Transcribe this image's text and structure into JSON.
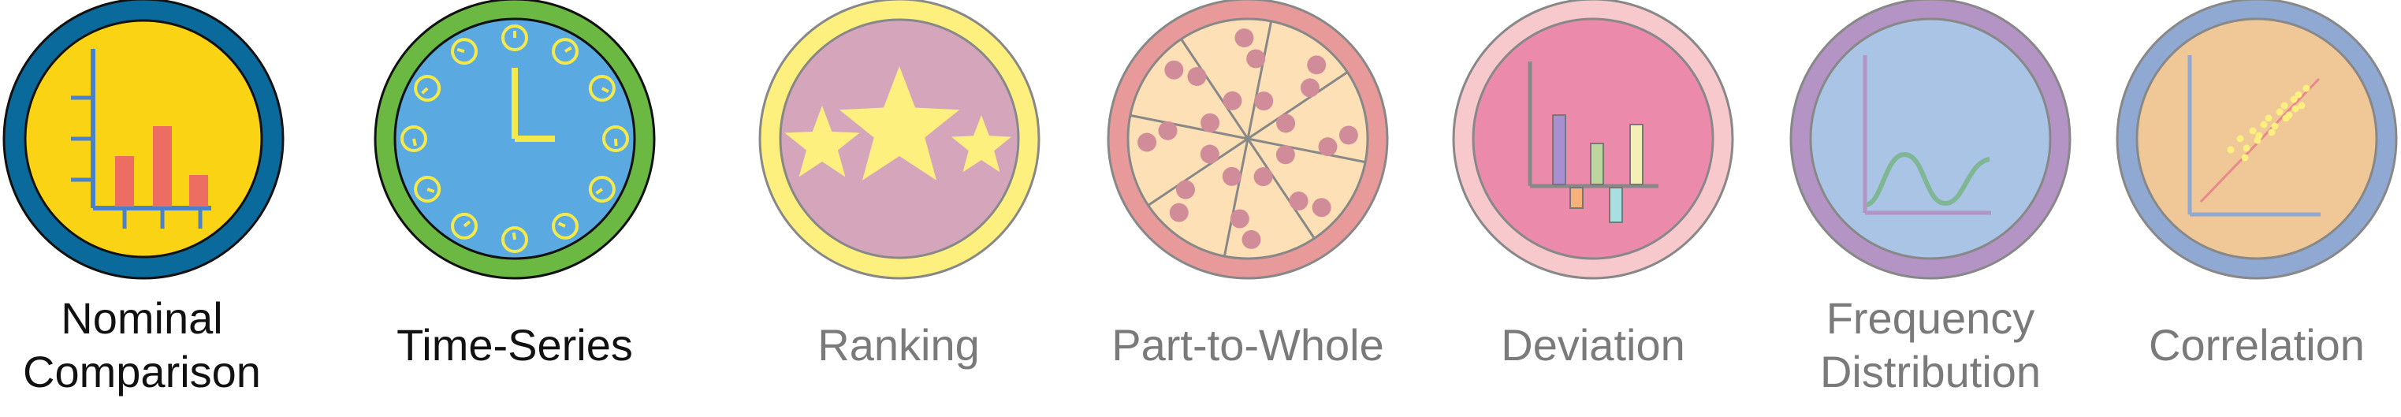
{
  "categories": [
    {
      "id": "nominal",
      "lines": [
        "Nominal",
        "Comparison"
      ],
      "style": "dark",
      "colors": {
        "ring": "#0b6a9c",
        "face": "#fbd315",
        "bars": "#ee6d63",
        "axis": "#4a82c9"
      },
      "icon": "bar-chart-icon"
    },
    {
      "id": "timeseries",
      "lines": [
        "Time-Series"
      ],
      "style": "dark",
      "colors": {
        "ring": "#6bb843",
        "face": "#5aa9e0",
        "marks": "#f3e94b"
      },
      "icon": "clock-icon"
    },
    {
      "id": "ranking",
      "lines": [
        "Ranking"
      ],
      "style": "gray",
      "colors": {
        "ring": "#fdf07e",
        "face": "#d5a5bc",
        "stars": "#fdf07e"
      },
      "icon": "stars-icon"
    },
    {
      "id": "parttowhole",
      "lines": [
        "Part-to-Whole"
      ],
      "style": "gray",
      "colors": {
        "ring": "#e89a9a",
        "face": "#fde0b6",
        "dots": "#d18c9a"
      },
      "icon": "pizza-icon"
    },
    {
      "id": "deviation",
      "lines": [
        "Deviation"
      ],
      "style": "gray",
      "colors": {
        "ring": "#f7c9cc",
        "face": "#ec8aab"
      },
      "icon": "deviation-chart-icon"
    },
    {
      "id": "frequency",
      "lines": [
        "Frequency",
        "Distribution"
      ],
      "style": "gray",
      "colors": {
        "ring": "#b394c5",
        "face": "#a9c4e5",
        "curve": "#7fb694",
        "axis": "#b394c5"
      },
      "icon": "distribution-curve-icon"
    },
    {
      "id": "correlation",
      "lines": [
        "Correlation"
      ],
      "style": "gray",
      "colors": {
        "ring": "#8fa9d2",
        "face": "#f0c797",
        "dots": "#fdf07e",
        "trend": "#e9888e"
      },
      "icon": "scatter-plot-icon"
    }
  ]
}
